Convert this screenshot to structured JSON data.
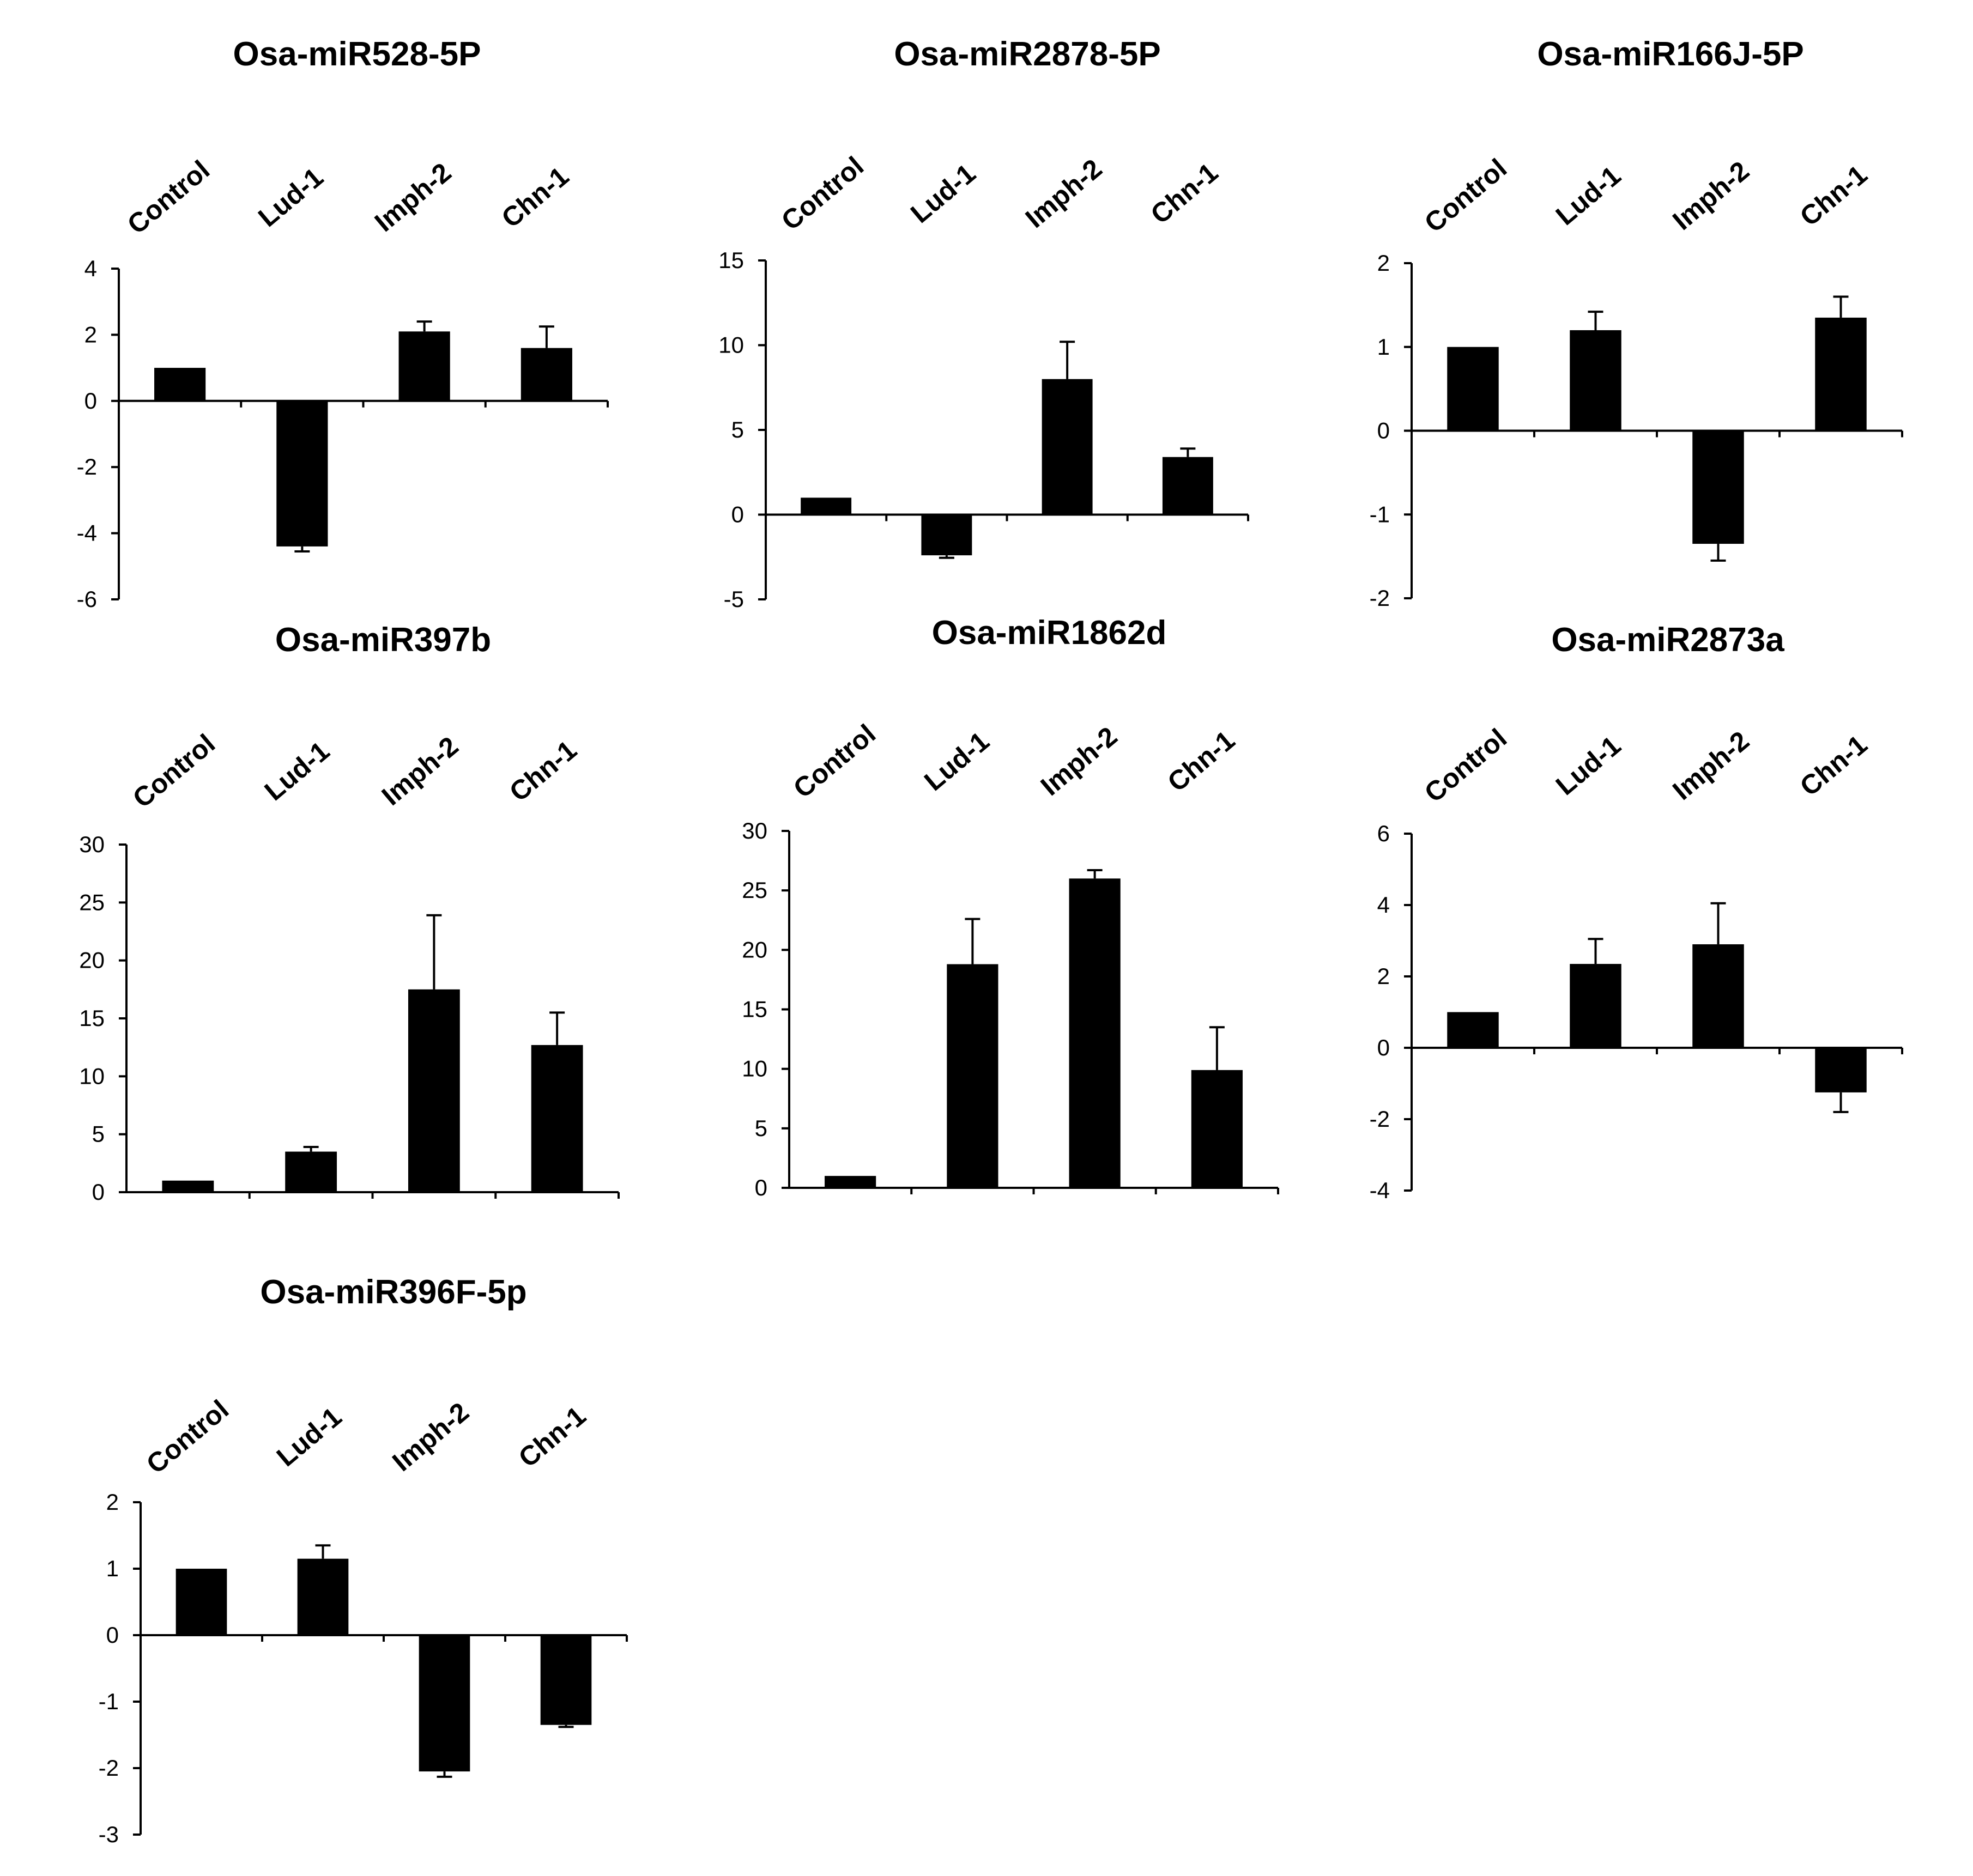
{
  "chart_data": [
    {
      "type": "bar",
      "title": "Osa-miR528-5P",
      "categories": [
        "Control",
        "Lud-1",
        "Imph-2",
        "Chn-1"
      ],
      "values": [
        1.0,
        -4.4,
        2.1,
        1.6
      ],
      "errors": [
        0,
        0.15,
        0.3,
        0.65
      ],
      "ylim": [
        -6,
        4
      ],
      "yticks": [
        4,
        2,
        0,
        -2,
        -4,
        -6
      ],
      "xlabel": "",
      "ylabel": ""
    },
    {
      "type": "bar",
      "title": "Osa-miR2878-5P",
      "categories": [
        "Control",
        "Lud-1",
        "Imph-2",
        "Chn-1"
      ],
      "values": [
        1.0,
        -2.4,
        8.0,
        3.4
      ],
      "errors": [
        0,
        0.15,
        2.2,
        0.5
      ],
      "ylim": [
        -5,
        15
      ],
      "yticks": [
        15,
        10,
        5,
        0,
        -5
      ],
      "xlabel": "",
      "ylabel": ""
    },
    {
      "type": "bar",
      "title": "Osa-miR166J-5P",
      "categories": [
        "Control",
        "Lud-1",
        "Imph-2",
        "Chn-1"
      ],
      "values": [
        1.0,
        1.2,
        -1.35,
        1.35
      ],
      "errors": [
        0,
        0.22,
        0.2,
        0.25
      ],
      "ylim": [
        -2,
        2
      ],
      "yticks": [
        2,
        1,
        0,
        -1,
        -2
      ],
      "xlabel": "",
      "ylabel": ""
    },
    {
      "type": "bar",
      "title": "Osa-miR397b",
      "categories": [
        "Control",
        "Lud-1",
        "Imph-2",
        "Chn-1"
      ],
      "values": [
        1.0,
        3.5,
        17.5,
        12.7
      ],
      "errors": [
        0,
        0.4,
        6.4,
        2.8
      ],
      "ylim": [
        0,
        30
      ],
      "yticks": [
        30,
        25,
        20,
        15,
        10,
        5,
        0
      ],
      "xlabel": "",
      "ylabel": ""
    },
    {
      "type": "bar",
      "title": "Osa-miR1862d",
      "categories": [
        "Control",
        "Lud-1",
        "Imph-2",
        "Chn-1"
      ],
      "values": [
        1.0,
        18.8,
        26.0,
        9.9
      ],
      "errors": [
        0,
        3.8,
        0.7,
        3.6
      ],
      "ylim": [
        0,
        30
      ],
      "yticks": [
        30,
        25,
        20,
        15,
        10,
        5,
        0
      ],
      "xlabel": "",
      "ylabel": ""
    },
    {
      "type": "bar",
      "title": "Osa-miR2873a",
      "categories": [
        "Control",
        "Lud-1",
        "Imph-2",
        "Chn-1"
      ],
      "values": [
        1.0,
        2.35,
        2.9,
        -1.25
      ],
      "errors": [
        0,
        0.7,
        1.15,
        0.55
      ],
      "ylim": [
        -4,
        6
      ],
      "yticks": [
        6,
        4,
        2,
        0,
        -2,
        -4
      ],
      "xlabel": "",
      "ylabel": ""
    },
    {
      "type": "bar",
      "title": "Osa-miR396F-5p",
      "categories": [
        "Control",
        "Lud-1",
        "Imph-2",
        "Chn-1"
      ],
      "values": [
        1.0,
        1.15,
        -2.05,
        -1.35
      ],
      "errors": [
        0,
        0.2,
        0.08,
        0.03
      ],
      "ylim": [
        -3,
        2
      ],
      "yticks": [
        2,
        1,
        0,
        -1,
        -2,
        -3
      ],
      "xlabel": "",
      "ylabel": ""
    }
  ]
}
